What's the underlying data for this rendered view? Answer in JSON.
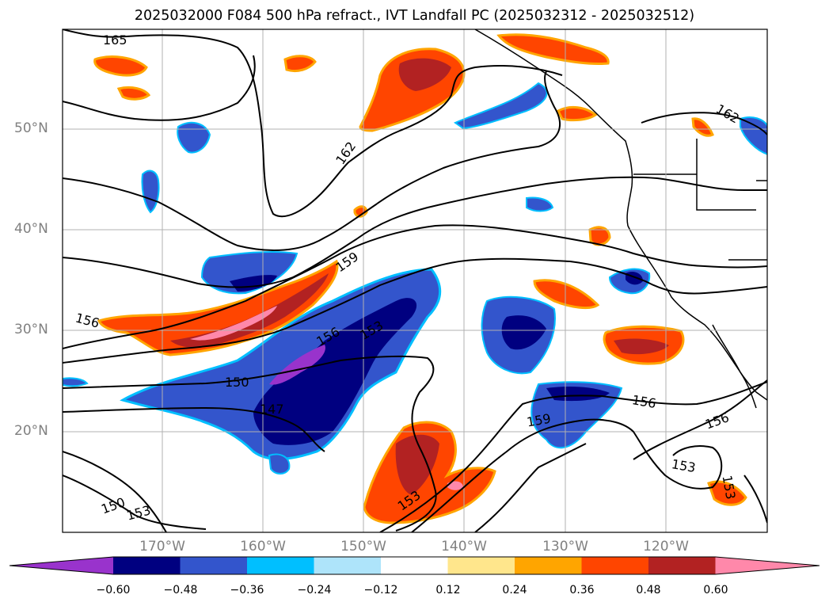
{
  "title": "2025032000 F084 500 hPa refract., IVT Landfall PC (2025032312 - 2025032512)",
  "lat_labels": [
    "50°N",
    "40°N",
    "30°N",
    "20°N"
  ],
  "lon_labels": [
    "170°W",
    "160°W",
    "150°W",
    "140°W",
    "130°W",
    "120°W"
  ],
  "contour_labels": [
    "165",
    "162",
    "162",
    "159",
    "156",
    "156",
    "153",
    "150",
    "147",
    "159",
    "156",
    "156",
    "153",
    "150",
    "153",
    "153",
    "156",
    "153"
  ],
  "colorbar": {
    "ticks": [
      "−0.60",
      "−0.48",
      "−0.36",
      "−0.24",
      "−0.12",
      "0.12",
      "0.24",
      "0.36",
      "0.48",
      "0.60"
    ],
    "colors": [
      "#9933cc",
      "#000080",
      "#3355cc",
      "#00bfff",
      "#aee4fa",
      "#ffffff",
      "#ffe68c",
      "#ffa500",
      "#ff4500",
      "#b22222",
      "#ff88aa"
    ]
  },
  "colors": {
    "land": "#000000",
    "grid": "#b0b0b0",
    "axis_label": "#808080"
  }
}
